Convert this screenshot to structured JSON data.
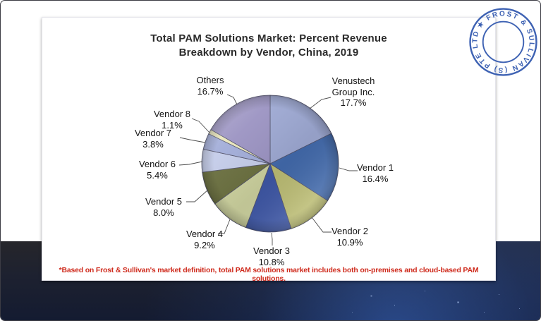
{
  "header": {
    "title_lines": [
      "Total PAM Solutions Market: Percent Revenue",
      "Breakdown by Vendor, China, 2019"
    ]
  },
  "footnote": {
    "text": "*Based on Frost & Sullivan's market definition, total PAM solutions market includes both on-premises and cloud-based PAM solutions.",
    "color": "#cf2b1d"
  },
  "stamp": {
    "text": "★ FROST & SULLIVAN (S) PTE LTD",
    "color": "#2e55ad"
  },
  "chart_data": {
    "type": "pie",
    "title": "Total PAM Solutions Market: Percent Revenue Breakdown by Vendor, China, 2019",
    "unit": "percent of revenue",
    "start_angle_deg": 0,
    "direction": "clockwise",
    "legend_position": "outside-callouts",
    "slices": [
      {
        "label": "Venustech Group Inc.",
        "value": 17.7,
        "display": [
          "Venustech",
          "Group Inc.",
          "17.7%"
        ],
        "color": "#9ea9d3"
      },
      {
        "label": "Vendor 1",
        "value": 16.4,
        "display": [
          "Vendor 1",
          "16.4%"
        ],
        "color": "#426aac"
      },
      {
        "label": "Vendor 2",
        "value": 10.9,
        "display": [
          "Vendor 2",
          "10.9%"
        ],
        "color": "#bcbd74"
      },
      {
        "label": "Vendor 3",
        "value": 10.8,
        "display": [
          "Vendor 3",
          "10.8%"
        ],
        "color": "#3e57a6"
      },
      {
        "label": "Vendor 4",
        "value": 9.2,
        "display": [
          "Vendor 4",
          "9.2%"
        ],
        "color": "#ccd19e"
      },
      {
        "label": "Vendor 5",
        "value": 8.0,
        "display": [
          "Vendor 5",
          "8.0%"
        ],
        "color": "#6a6f3f"
      },
      {
        "label": "Vendor 6",
        "value": 5.4,
        "display": [
          "Vendor 6",
          "5.4%"
        ],
        "color": "#c4cce9"
      },
      {
        "label": "Vendor 7",
        "value": 3.8,
        "display": [
          "Vendor 7",
          "3.8%"
        ],
        "color": "#a1acd8"
      },
      {
        "label": "Vendor 8",
        "value": 1.1,
        "display": [
          "Vendor 8",
          "1.1%"
        ],
        "color": "#e9e6bb"
      },
      {
        "label": "Others",
        "value": 16.7,
        "display": [
          "Others",
          "16.7%"
        ],
        "color": "#9b93c2"
      }
    ]
  }
}
